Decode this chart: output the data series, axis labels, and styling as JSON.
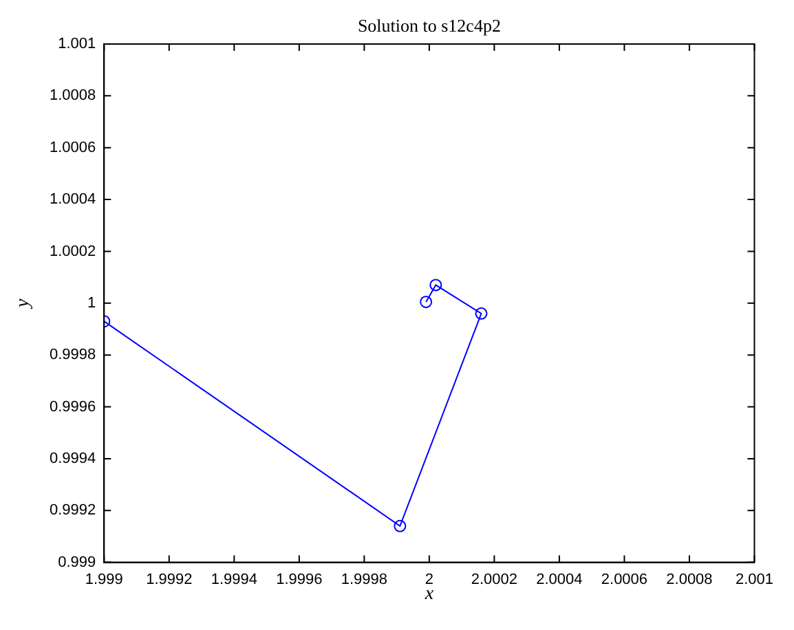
{
  "chart_data": {
    "type": "line",
    "title": "Solution to s12c4p2",
    "xlabel": "x",
    "ylabel": "y",
    "series": [
      {
        "color": "#0000ff",
        "x": [
          1.999,
          1.99991,
          2.00016,
          2.00002,
          1.99999
        ],
        "values": [
          0.99993,
          0.99914,
          0.99996,
          1.00007,
          1.000005
        ]
      }
    ],
    "xlim": [
      1.999,
      2.001
    ],
    "xticks": [
      1.999,
      1.9992,
      1.9994,
      1.9996,
      1.9998,
      2,
      2.0002,
      2.0004,
      2.0006,
      2.0008,
      2.001
    ],
    "ylim": [
      0.999,
      1.001
    ],
    "yticks": [
      0.999,
      0.9992,
      0.9994,
      0.9996,
      0.9998,
      1,
      1.0002,
      1.0004,
      1.0006,
      1.0008,
      1.001
    ],
    "marker": "circle",
    "line_style": "solid",
    "grid": false,
    "legend": false
  }
}
